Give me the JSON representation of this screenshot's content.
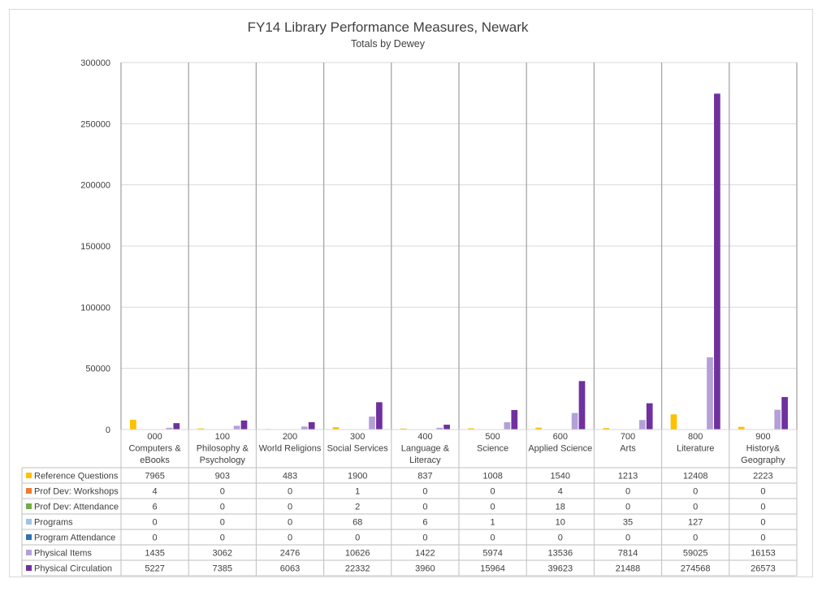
{
  "chart_data": {
    "type": "bar",
    "title": "FY14 Library Performance Measures, Newark",
    "subtitle": "Totals by Dewey",
    "ylim": [
      0,
      300000
    ],
    "yticks": [
      0,
      50000,
      100000,
      150000,
      200000,
      250000,
      300000
    ],
    "grid": true,
    "legend_placement": "data-table-left",
    "categories": [
      [
        "000",
        "Computers &",
        "eBooks"
      ],
      [
        "100",
        "Philosophy &",
        "Psychology"
      ],
      [
        "200",
        "World Religions"
      ],
      [
        "300",
        "Social Services"
      ],
      [
        "400",
        "Language &",
        "Literacy"
      ],
      [
        "500",
        "Science"
      ],
      [
        "600",
        "Applied Science"
      ],
      [
        "700",
        "Arts"
      ],
      [
        "800",
        "Literature"
      ],
      [
        "900",
        "History&",
        "Geography"
      ]
    ],
    "series": [
      {
        "name": "Reference Questions",
        "color": "#ffc000",
        "values": [
          7965,
          903,
          483,
          1900,
          837,
          1008,
          1540,
          1213,
          12408,
          2223
        ]
      },
      {
        "name": "Prof Dev: Workshops",
        "color": "#ed7d31",
        "values": [
          4,
          0,
          0,
          1,
          0,
          0,
          4,
          0,
          0,
          0
        ]
      },
      {
        "name": "Prof Dev: Attendance",
        "color": "#70ad47",
        "values": [
          6,
          0,
          0,
          2,
          0,
          0,
          18,
          0,
          0,
          0
        ]
      },
      {
        "name": "Programs",
        "color": "#9dc3e6",
        "values": [
          0,
          0,
          0,
          68,
          6,
          1,
          10,
          35,
          127,
          0
        ]
      },
      {
        "name": "Program Attendance",
        "color": "#2e75b6",
        "values": [
          0,
          0,
          0,
          0,
          0,
          0,
          0,
          0,
          0,
          0
        ]
      },
      {
        "name": "Physical Items",
        "color": "#b4a0d8",
        "values": [
          1435,
          3062,
          2476,
          10626,
          1422,
          5974,
          13536,
          7814,
          59025,
          16153
        ]
      },
      {
        "name": "Physical Circulation",
        "color": "#7030a0",
        "values": [
          5227,
          7385,
          6063,
          22332,
          3960,
          15964,
          39623,
          21488,
          274568,
          26573
        ]
      }
    ]
  }
}
